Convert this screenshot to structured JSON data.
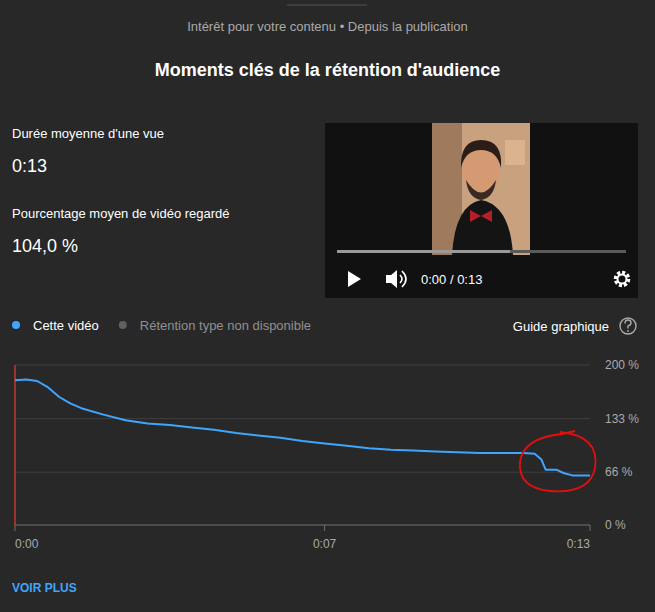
{
  "header": {
    "subtitle": "Intérêt pour votre contenu • Depuis la publication"
  },
  "summary": [
    {
      "label": "Durée moyenne d'une vue",
      "value": "0:13"
    },
    {
      "label": "Pourcentage moyen de vidéo regardé",
      "value": "104,0 %"
    }
  ],
  "player": {
    "time": "0:00 / 0:13"
  },
  "legend_unavailable": "Rétention type non disponible",
  "chart_guide": "Guide graphique",
  "footer": {
    "link": "VOIR PLUS"
  },
  "chart_data": {
    "type": "line",
    "title": "Moments clés de la rétention d'audience",
    "x": [
      0,
      0.25,
      0.5,
      0.75,
      1,
      1.25,
      1.5,
      2,
      2.5,
      3,
      3.5,
      4,
      4.5,
      5,
      5.5,
      6,
      6.5,
      7,
      7.5,
      8,
      8.5,
      9,
      9.5,
      10,
      10.5,
      11,
      11.5,
      11.75,
      11.9,
      12,
      12.25,
      12.4,
      12.6,
      13
    ],
    "series": [
      {
        "name": "Cette vidéo",
        "color": "#3ea6ff",
        "values": [
          181,
          182,
          180,
          172,
          160,
          152,
          146,
          138,
          131,
          127,
          125,
          122,
          119,
          115,
          112,
          109,
          105,
          102,
          99,
          96,
          94,
          93,
          92,
          91,
          90,
          90,
          90,
          89,
          82,
          69,
          69,
          65,
          62,
          62
        ]
      }
    ],
    "xlim": [
      0,
      13
    ],
    "xticks": [
      {
        "value": 0,
        "label": "0:00"
      },
      {
        "value": 7,
        "label": "0:07"
      },
      {
        "value": 13,
        "label": "0:13"
      }
    ],
    "ylim": [
      0,
      200
    ],
    "yticks": [
      {
        "value": 0,
        "label": "0 %"
      },
      {
        "value": 66,
        "label": "66 %"
      },
      {
        "value": 133,
        "label": "133 %"
      },
      {
        "value": 200,
        "label": "200 %"
      }
    ],
    "grid": true,
    "legend": "top-left"
  }
}
